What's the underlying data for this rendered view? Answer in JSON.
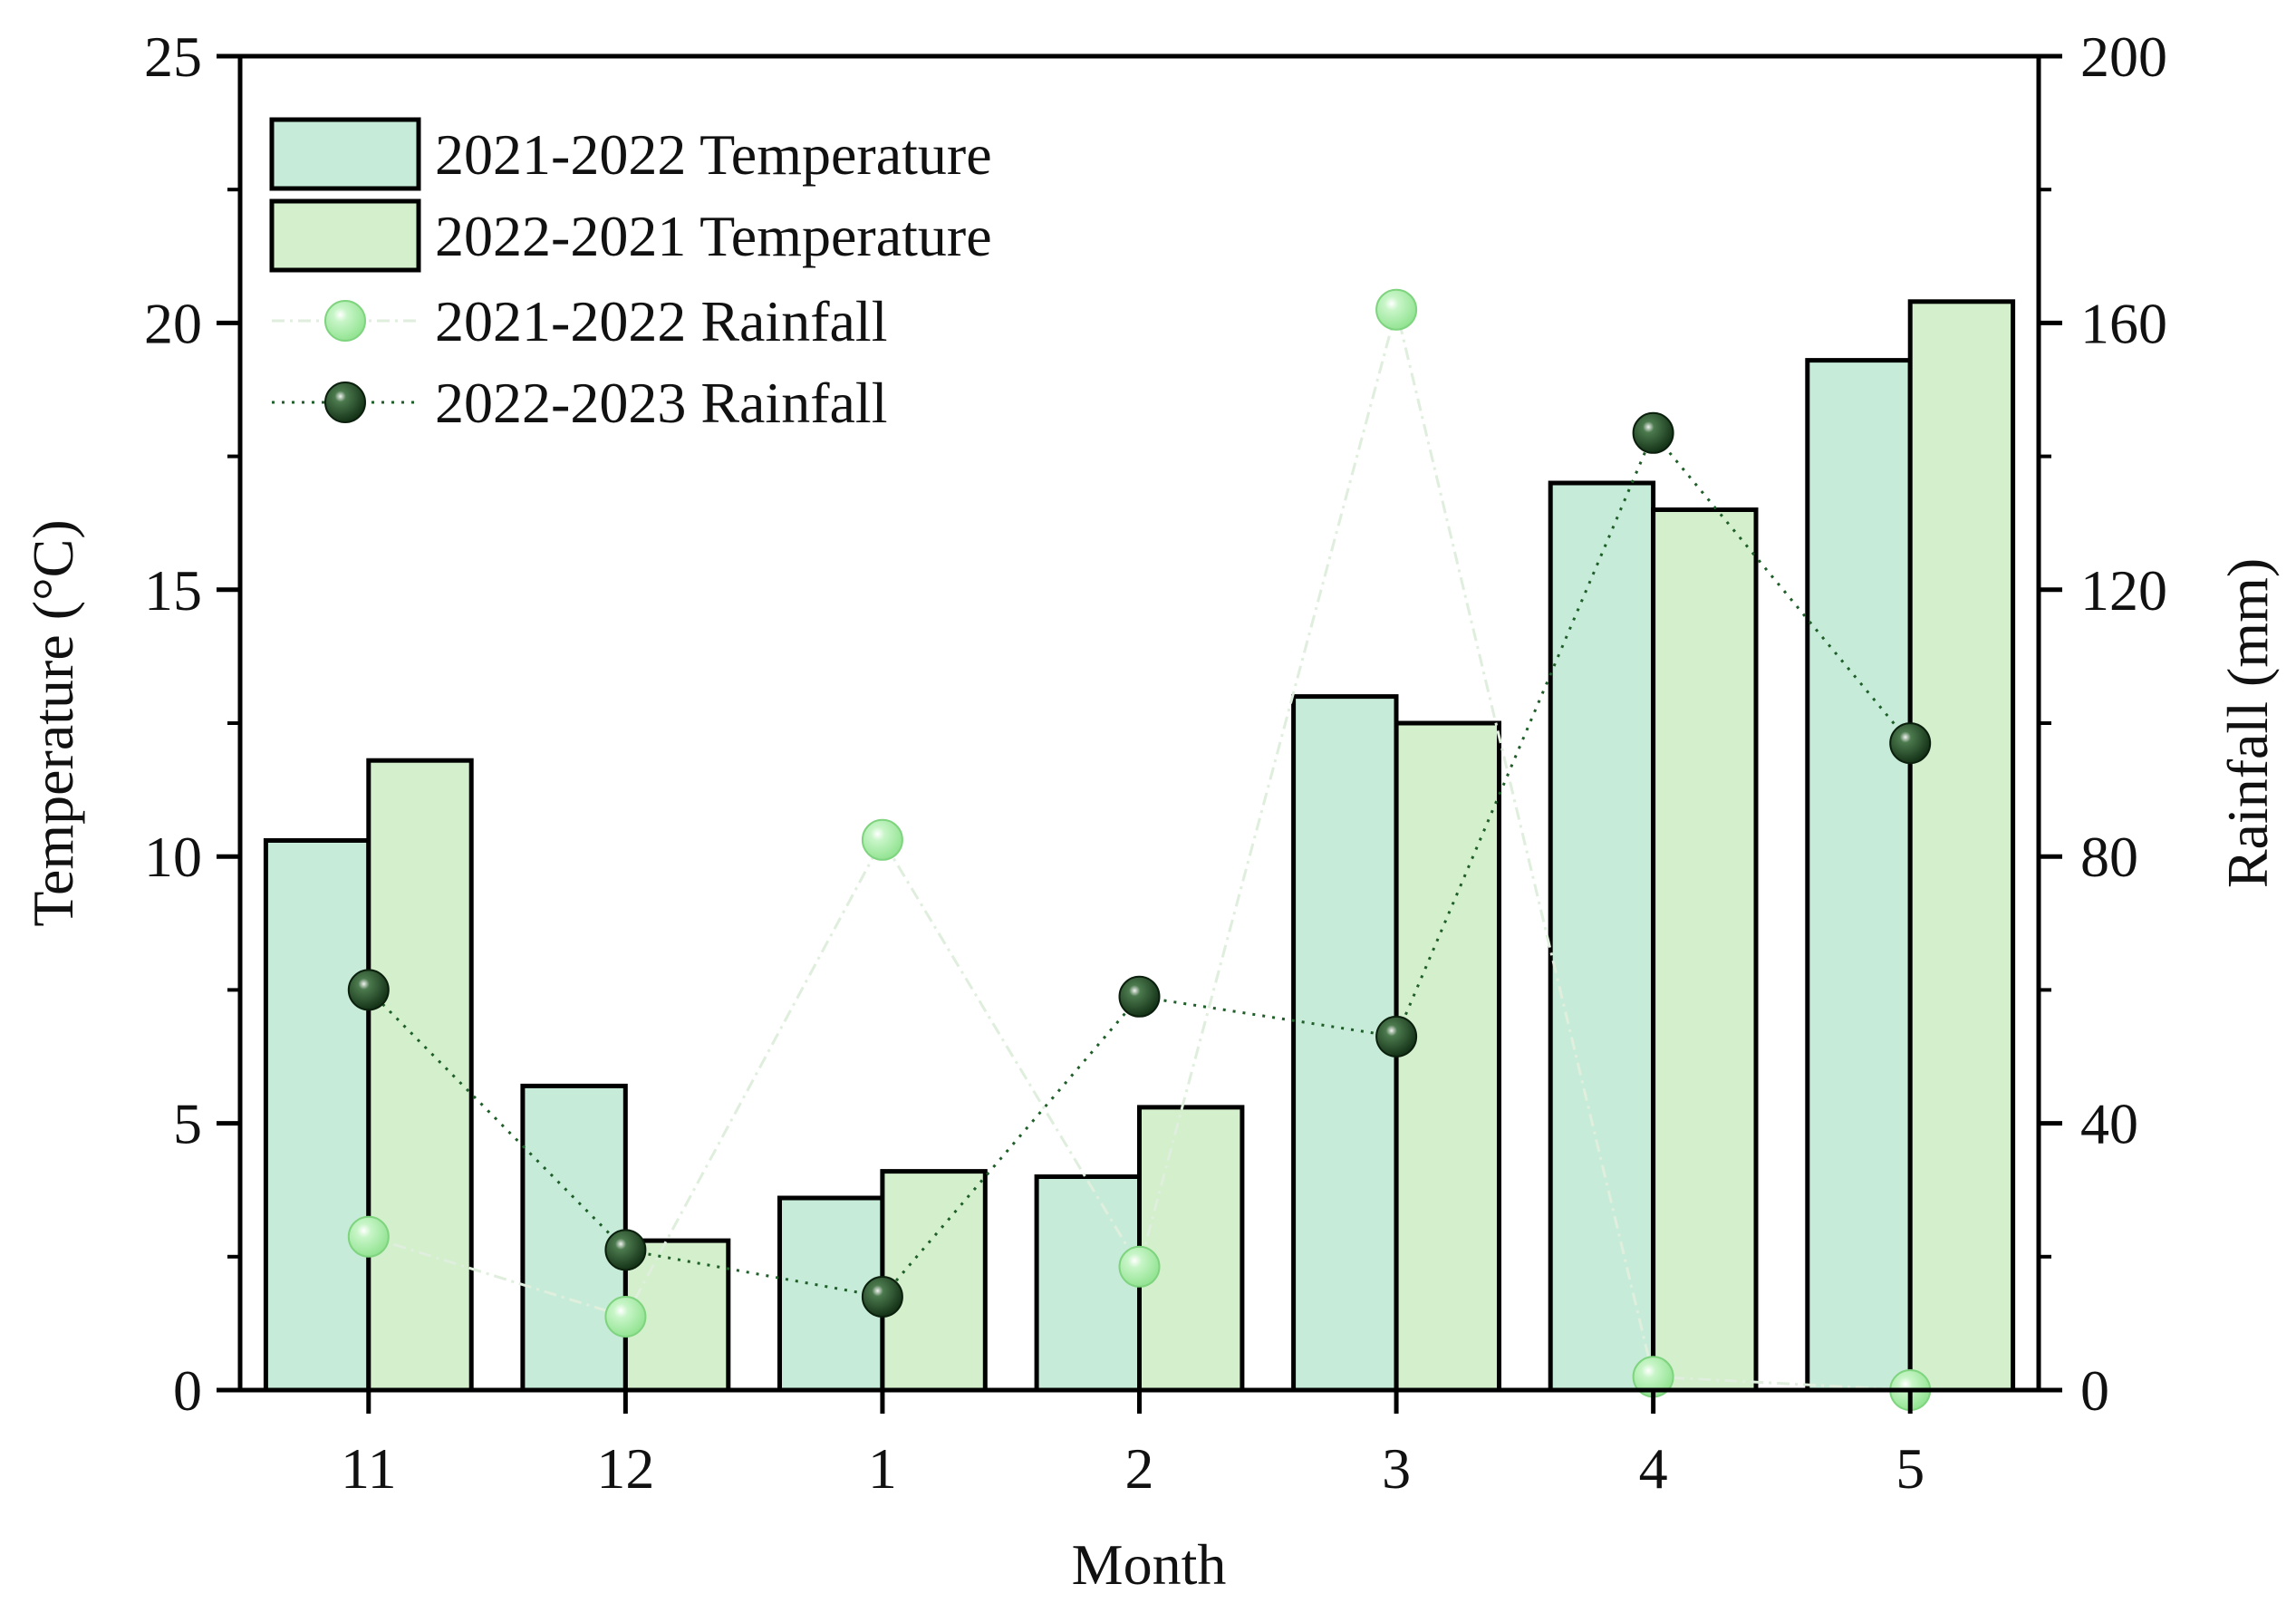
{
  "chart_data": {
    "type": "bar+line",
    "title": "",
    "xlabel": "Month",
    "ylabel_left": "Temperature (°C)",
    "ylabel_right": "Rainfall (mm)",
    "categories": [
      "11",
      "12",
      "1",
      "2",
      "3",
      "4",
      "5"
    ],
    "ylim_left": [
      0,
      25
    ],
    "ylim_right": [
      0,
      200
    ],
    "yticks_left": [
      "0",
      "5",
      "10",
      "15",
      "20",
      "25"
    ],
    "yticks_right": [
      "0",
      "40",
      "80",
      "120",
      "160",
      "200"
    ],
    "grid": false,
    "legend_position": "top-left",
    "bar_series": [
      {
        "name": "2021-2022 Temperature",
        "values": [
          10.3,
          5.7,
          3.6,
          4.0,
          13.0,
          17.0,
          19.3
        ],
        "color": "#c6ecd9"
      },
      {
        "name": "2022-2021 Temperature",
        "values": [
          11.8,
          2.8,
          4.1,
          5.3,
          12.5,
          16.5,
          20.4
        ],
        "color": "#d3efcb"
      }
    ],
    "line_series": [
      {
        "name": "2021-2022 Rainfall",
        "values": [
          23,
          11,
          82.5,
          18.5,
          162,
          2,
          0
        ],
        "color": "#8ee28e",
        "line_color": "#dfeedd",
        "style": "dash-dot"
      },
      {
        "name": "2022-2023 Rainfall",
        "values": [
          60,
          21,
          14,
          59,
          53,
          143.5,
          97
        ],
        "color": "#1e4e22",
        "line_color": "#1e5e28",
        "style": "dotted"
      }
    ]
  }
}
